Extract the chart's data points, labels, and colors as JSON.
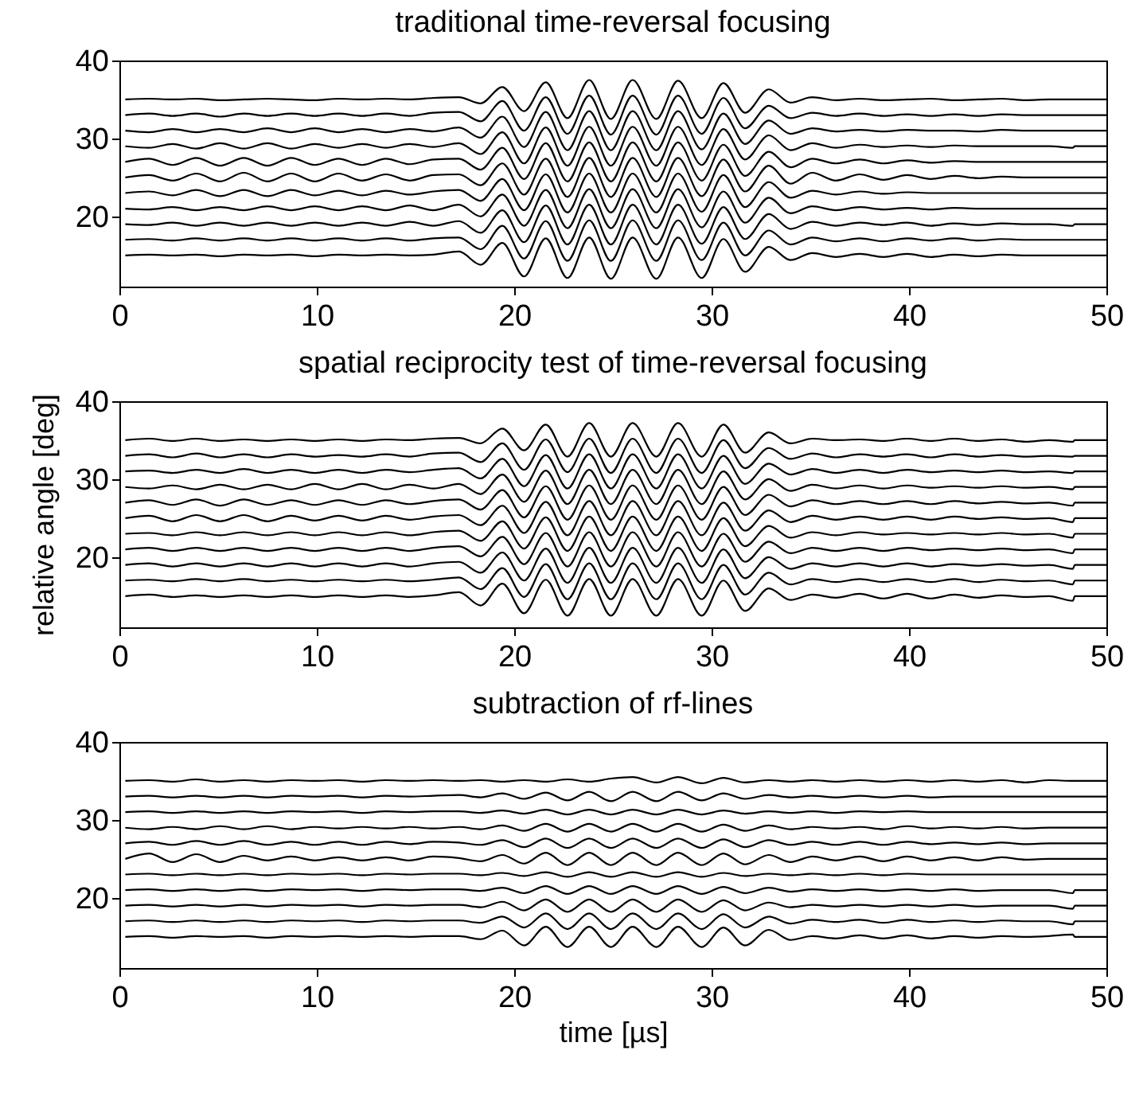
{
  "chart_data": [
    {
      "type": "line",
      "title": "traditional time-reversal focusing",
      "x": [
        0.3,
        1.5,
        2.7,
        3.9,
        5.1,
        6.3,
        7.5,
        8.7,
        9.9,
        11.1,
        12.3,
        13.5,
        14.7,
        15.9,
        17.2,
        18.3,
        19.4,
        20.5,
        21.6,
        22.7,
        23.8,
        24.9,
        26.0,
        27.2,
        28.3,
        29.5,
        30.6,
        31.7,
        32.9,
        34.0,
        35.1,
        36.3,
        37.5,
        38.7,
        39.9,
        41.1,
        42.3,
        43.5,
        44.7,
        45.9,
        47.1,
        48.3,
        48.4,
        50
      ],
      "xlim": [
        0,
        50
      ],
      "ylim": [
        11,
        40
      ],
      "xticks": [
        0,
        10,
        20,
        30,
        40,
        50
      ],
      "yticks": [
        20,
        30,
        40
      ],
      "legend": false,
      "grid": false,
      "series": [
        {
          "color": "#000000",
          "values": [
            35.0,
            35.1,
            35.0,
            35.1,
            34.9,
            35.0,
            35.1,
            35.0,
            34.9,
            35.1,
            35.0,
            35.1,
            35.0,
            35.2,
            35.3,
            34.5,
            36.6,
            33.5,
            37.2,
            32.6,
            37.5,
            32.5,
            37.5,
            32.5,
            37.4,
            32.6,
            37.1,
            33.3,
            36.3,
            34.6,
            35.3,
            34.9,
            35.1,
            34.9,
            35.0,
            35.1,
            34.9,
            35.0,
            35.1,
            34.9,
            35.0,
            35.0,
            35.0,
            35.0
          ]
        },
        {
          "color": "#000000",
          "values": [
            33.0,
            33.2,
            32.9,
            33.2,
            32.8,
            33.2,
            32.9,
            33.2,
            32.9,
            33.2,
            32.9,
            33.2,
            32.9,
            33.3,
            33.4,
            32.2,
            34.8,
            31.0,
            35.3,
            30.6,
            35.5,
            30.5,
            35.5,
            30.5,
            35.5,
            30.6,
            35.2,
            31.3,
            34.2,
            32.6,
            33.3,
            32.9,
            33.2,
            32.9,
            33.1,
            32.9,
            33.1,
            32.9,
            33.1,
            33.0,
            33.0,
            33.0,
            33.0,
            33.0
          ]
        },
        {
          "color": "#000000",
          "values": [
            31.0,
            30.8,
            31.2,
            30.8,
            31.2,
            30.8,
            31.3,
            30.8,
            31.3,
            30.8,
            31.2,
            30.8,
            31.2,
            30.9,
            31.4,
            30.1,
            32.8,
            28.9,
            33.4,
            28.5,
            33.5,
            28.5,
            33.5,
            28.5,
            33.5,
            28.6,
            33.2,
            29.3,
            32.3,
            30.6,
            31.3,
            30.9,
            31.1,
            30.9,
            31.1,
            31.0,
            31.0,
            30.9,
            31.1,
            31.0,
            31.0,
            31.0,
            31.0,
            31.0
          ]
        },
        {
          "color": "#000000",
          "values": [
            29.0,
            28.8,
            29.3,
            28.7,
            29.4,
            28.7,
            29.4,
            28.7,
            29.3,
            28.8,
            29.3,
            28.8,
            29.3,
            28.9,
            29.4,
            28.0,
            30.8,
            26.8,
            31.4,
            26.5,
            31.5,
            26.5,
            31.5,
            26.5,
            31.5,
            26.6,
            31.2,
            27.3,
            30.4,
            28.5,
            29.4,
            28.8,
            29.2,
            28.9,
            29.1,
            28.9,
            29.1,
            29.0,
            29.0,
            29.0,
            29.0,
            28.8,
            29.0,
            29.0
          ]
        },
        {
          "color": "#000000",
          "values": [
            27.0,
            27.4,
            26.6,
            27.5,
            26.5,
            27.5,
            26.5,
            27.5,
            26.6,
            27.4,
            26.6,
            27.4,
            26.7,
            27.3,
            27.4,
            26.0,
            28.8,
            24.8,
            29.4,
            24.5,
            29.5,
            24.5,
            29.5,
            24.5,
            29.5,
            24.6,
            29.2,
            25.2,
            28.3,
            26.3,
            27.4,
            26.8,
            27.3,
            26.8,
            27.2,
            26.9,
            27.1,
            27.0,
            27.0,
            27.0,
            27.0,
            27.0,
            27.0,
            27.0
          ]
        },
        {
          "color": "#000000",
          "values": [
            25.0,
            25.3,
            24.6,
            25.5,
            24.5,
            25.6,
            24.5,
            25.5,
            24.5,
            25.5,
            24.6,
            25.4,
            24.6,
            25.3,
            25.4,
            24.0,
            26.8,
            22.8,
            27.4,
            22.5,
            27.5,
            22.5,
            27.5,
            22.5,
            27.5,
            22.6,
            27.3,
            23.2,
            26.5,
            24.2,
            25.6,
            24.6,
            25.4,
            24.7,
            25.3,
            24.8,
            25.2,
            24.9,
            25.1,
            25.0,
            25.0,
            25.0,
            25.0,
            25.0
          ]
        },
        {
          "color": "#000000",
          "values": [
            23.0,
            23.2,
            22.7,
            23.4,
            22.6,
            23.4,
            22.6,
            23.4,
            22.7,
            23.3,
            22.7,
            23.3,
            22.8,
            23.2,
            23.4,
            22.0,
            24.8,
            20.8,
            25.4,
            20.5,
            25.5,
            20.5,
            25.5,
            20.5,
            25.5,
            20.6,
            25.3,
            21.2,
            24.4,
            22.4,
            23.3,
            22.8,
            23.2,
            22.9,
            23.1,
            23.0,
            23.0,
            23.0,
            23.0,
            23.0,
            23.0,
            23.0,
            23.0,
            23.0
          ]
        },
        {
          "color": "#000000",
          "values": [
            21.0,
            20.9,
            21.2,
            20.8,
            21.2,
            20.8,
            21.3,
            20.8,
            21.3,
            20.8,
            21.3,
            20.8,
            21.4,
            20.8,
            21.5,
            20.0,
            22.8,
            18.8,
            23.4,
            18.5,
            23.5,
            18.5,
            23.5,
            18.5,
            23.5,
            18.6,
            23.2,
            19.2,
            22.4,
            20.4,
            21.3,
            20.8,
            21.2,
            20.9,
            21.1,
            20.9,
            21.1,
            21.0,
            21.0,
            21.0,
            21.0,
            21.0,
            21.0,
            21.0
          ]
        },
        {
          "color": "#000000",
          "values": [
            19.0,
            18.9,
            19.2,
            18.8,
            19.2,
            18.8,
            19.2,
            18.8,
            19.2,
            18.8,
            19.2,
            18.8,
            19.3,
            18.8,
            19.4,
            17.9,
            20.8,
            16.7,
            21.4,
            16.4,
            21.5,
            16.4,
            21.5,
            16.4,
            21.5,
            16.5,
            21.2,
            17.1,
            20.3,
            18.4,
            19.3,
            18.8,
            19.2,
            18.9,
            19.2,
            18.8,
            19.1,
            18.9,
            19.1,
            19.0,
            19.0,
            18.8,
            19.0,
            19.0
          ]
        },
        {
          "color": "#000000",
          "values": [
            17.0,
            17.1,
            16.9,
            17.2,
            16.9,
            17.2,
            16.9,
            17.2,
            16.9,
            17.2,
            16.9,
            17.2,
            16.9,
            17.2,
            17.3,
            15.8,
            18.8,
            14.6,
            19.4,
            14.3,
            19.5,
            14.3,
            19.5,
            14.3,
            19.5,
            14.4,
            19.2,
            15.0,
            18.2,
            16.4,
            17.3,
            16.8,
            17.2,
            16.8,
            17.2,
            16.9,
            17.2,
            16.9,
            17.1,
            17.0,
            17.0,
            17.0,
            17.0,
            17.0
          ]
        },
        {
          "color": "#000000",
          "values": [
            15.0,
            15.1,
            15.0,
            15.1,
            14.9,
            15.1,
            15.0,
            15.1,
            14.9,
            15.1,
            15.0,
            15.1,
            15.0,
            15.1,
            15.5,
            13.8,
            16.6,
            12.3,
            17.2,
            12.1,
            17.3,
            12.0,
            17.3,
            12.0,
            17.3,
            12.1,
            17.1,
            12.9,
            16.1,
            14.4,
            15.3,
            14.8,
            15.2,
            14.8,
            15.2,
            14.8,
            15.1,
            14.9,
            15.1,
            15.0,
            15.0,
            15.0,
            15.0,
            15.0
          ]
        }
      ]
    },
    {
      "type": "line",
      "title": "spatial reciprocity test of time-reversal focusing",
      "ylabel": "relative angle [deg]",
      "x": [
        0.3,
        1.5,
        2.7,
        3.9,
        5.1,
        6.3,
        7.5,
        8.7,
        9.9,
        11.1,
        12.3,
        13.5,
        14.7,
        15.9,
        17.2,
        18.3,
        19.4,
        20.5,
        21.6,
        22.7,
        23.8,
        24.9,
        26.0,
        27.2,
        28.3,
        29.5,
        30.6,
        31.7,
        32.9,
        34.0,
        35.1,
        36.3,
        37.5,
        38.7,
        39.9,
        41.1,
        42.3,
        43.5,
        44.7,
        45.9,
        47.1,
        48.3,
        48.4,
        50
      ],
      "xlim": [
        0,
        50
      ],
      "ylim": [
        11,
        40
      ],
      "xticks": [
        0,
        10,
        20,
        30,
        40,
        50
      ],
      "yticks": [
        20,
        30,
        40
      ],
      "legend": false,
      "grid": false,
      "series": [
        {
          "color": "#000000",
          "values": [
            35.0,
            35.2,
            34.9,
            35.2,
            34.9,
            35.1,
            34.9,
            35.1,
            34.9,
            35.1,
            34.9,
            35.1,
            35.0,
            35.2,
            35.3,
            34.6,
            36.5,
            33.7,
            37.0,
            32.9,
            37.2,
            32.9,
            37.2,
            32.9,
            37.2,
            32.9,
            37.0,
            33.4,
            36.0,
            34.6,
            35.2,
            35.0,
            35.1,
            34.9,
            35.2,
            34.9,
            35.2,
            34.9,
            35.1,
            34.8,
            35.0,
            34.8,
            35.0,
            35.0
          ]
        },
        {
          "color": "#000000",
          "values": [
            33.0,
            33.2,
            32.8,
            33.3,
            32.8,
            33.2,
            32.8,
            33.2,
            32.9,
            33.1,
            32.9,
            33.2,
            32.9,
            33.3,
            33.4,
            32.2,
            34.6,
            31.2,
            35.1,
            30.9,
            35.2,
            30.8,
            35.2,
            30.8,
            35.2,
            30.8,
            35.0,
            31.4,
            34.0,
            32.6,
            33.3,
            32.8,
            33.2,
            32.9,
            33.2,
            32.8,
            33.2,
            32.9,
            33.1,
            32.9,
            33.0,
            32.9,
            33.0,
            33.0
          ]
        },
        {
          "color": "#000000",
          "values": [
            31.0,
            31.1,
            30.8,
            31.2,
            30.8,
            31.3,
            30.8,
            31.2,
            30.8,
            31.2,
            30.8,
            31.2,
            30.9,
            31.2,
            31.4,
            30.1,
            32.6,
            29.1,
            33.1,
            28.8,
            33.2,
            28.8,
            33.2,
            28.8,
            33.2,
            28.8,
            33.0,
            29.4,
            32.0,
            30.6,
            31.3,
            30.8,
            31.2,
            30.8,
            31.2,
            30.9,
            31.1,
            30.9,
            31.1,
            30.9,
            31.0,
            30.8,
            31.0,
            31.0
          ]
        },
        {
          "color": "#000000",
          "values": [
            29.0,
            28.8,
            29.2,
            28.7,
            29.3,
            28.7,
            29.3,
            28.7,
            29.4,
            28.7,
            29.4,
            28.7,
            29.3,
            28.8,
            29.4,
            28.1,
            30.6,
            27.1,
            31.1,
            26.8,
            31.2,
            26.8,
            31.2,
            26.8,
            31.2,
            26.8,
            31.0,
            27.4,
            30.0,
            28.5,
            29.3,
            28.8,
            29.2,
            28.8,
            29.2,
            28.9,
            29.1,
            28.9,
            29.1,
            28.9,
            29.0,
            28.7,
            29.0,
            29.0
          ]
        },
        {
          "color": "#000000",
          "values": [
            27.0,
            27.3,
            26.7,
            27.4,
            26.6,
            27.4,
            26.7,
            27.3,
            26.7,
            27.3,
            26.7,
            27.3,
            26.8,
            27.2,
            27.4,
            26.1,
            28.6,
            25.1,
            29.1,
            24.8,
            29.2,
            24.8,
            29.2,
            24.8,
            29.2,
            24.8,
            29.0,
            25.4,
            28.0,
            26.5,
            27.3,
            26.8,
            27.2,
            26.8,
            27.2,
            26.8,
            27.2,
            26.9,
            27.1,
            26.9,
            27.0,
            26.6,
            27.0,
            27.0
          ]
        },
        {
          "color": "#000000",
          "values": [
            25.0,
            25.3,
            24.6,
            25.4,
            24.6,
            25.4,
            24.6,
            25.3,
            24.7,
            25.3,
            24.7,
            25.3,
            24.8,
            25.2,
            25.4,
            24.1,
            26.6,
            23.1,
            27.1,
            22.8,
            27.2,
            22.8,
            27.2,
            22.8,
            27.2,
            22.8,
            27.0,
            23.4,
            26.0,
            24.5,
            25.3,
            24.8,
            25.2,
            24.8,
            25.2,
            24.8,
            25.2,
            24.9,
            25.1,
            24.9,
            25.0,
            24.5,
            25.0,
            25.0
          ]
        },
        {
          "color": "#000000",
          "values": [
            23.0,
            23.1,
            22.8,
            23.2,
            22.8,
            23.2,
            22.8,
            23.2,
            22.8,
            23.2,
            22.8,
            23.2,
            22.8,
            23.2,
            23.4,
            22.1,
            24.6,
            21.1,
            25.1,
            20.8,
            25.2,
            20.8,
            25.2,
            20.8,
            25.2,
            20.8,
            25.0,
            21.4,
            24.0,
            22.5,
            23.2,
            22.8,
            23.2,
            22.9,
            23.1,
            22.9,
            23.1,
            22.9,
            23.1,
            22.9,
            23.0,
            22.5,
            23.0,
            23.0
          ]
        },
        {
          "color": "#000000",
          "values": [
            21.0,
            21.2,
            20.8,
            21.2,
            20.8,
            21.2,
            20.8,
            21.2,
            20.8,
            21.2,
            20.8,
            21.2,
            20.8,
            21.2,
            21.4,
            20.1,
            22.6,
            19.1,
            23.1,
            18.8,
            23.2,
            18.8,
            23.2,
            18.8,
            23.2,
            18.8,
            23.0,
            19.4,
            22.0,
            20.5,
            21.2,
            20.8,
            21.2,
            20.8,
            21.2,
            20.9,
            21.1,
            20.9,
            21.1,
            20.9,
            21.0,
            20.5,
            21.0,
            21.0
          ]
        },
        {
          "color": "#000000",
          "values": [
            19.0,
            19.2,
            18.8,
            19.2,
            18.8,
            19.2,
            18.8,
            19.2,
            18.8,
            19.2,
            18.8,
            19.2,
            18.8,
            19.2,
            19.4,
            18.0,
            20.6,
            17.0,
            21.1,
            16.7,
            21.2,
            16.7,
            21.2,
            16.7,
            21.2,
            16.7,
            21.0,
            17.3,
            20.0,
            18.5,
            19.2,
            18.8,
            19.2,
            18.8,
            19.2,
            18.8,
            19.1,
            18.9,
            19.1,
            18.9,
            19.0,
            18.5,
            19.0,
            19.0
          ]
        },
        {
          "color": "#000000",
          "values": [
            17.0,
            17.1,
            16.9,
            17.2,
            16.9,
            17.2,
            16.9,
            17.1,
            16.9,
            17.1,
            16.9,
            17.1,
            16.9,
            17.1,
            17.4,
            15.9,
            18.6,
            14.9,
            19.1,
            14.6,
            19.2,
            14.6,
            19.2,
            14.6,
            19.2,
            14.6,
            19.0,
            15.2,
            18.0,
            16.5,
            17.2,
            16.8,
            17.2,
            16.8,
            17.2,
            16.8,
            17.2,
            16.8,
            17.1,
            16.9,
            17.0,
            16.5,
            17.0,
            17.0
          ]
        },
        {
          "color": "#000000",
          "values": [
            15.0,
            15.2,
            14.9,
            15.1,
            14.9,
            15.1,
            14.9,
            15.1,
            14.9,
            15.1,
            14.9,
            15.1,
            14.9,
            15.1,
            15.5,
            13.8,
            16.6,
            12.8,
            17.1,
            12.5,
            17.2,
            12.5,
            17.2,
            12.5,
            17.2,
            12.5,
            17.0,
            13.1,
            16.0,
            14.5,
            15.2,
            14.8,
            15.3,
            14.7,
            15.3,
            14.7,
            15.2,
            14.8,
            15.1,
            14.9,
            15.0,
            14.4,
            15.0,
            15.0
          ]
        }
      ]
    },
    {
      "type": "line",
      "title": "subtraction of rf-lines",
      "xlabel": "time [µs]",
      "x": [
        0.3,
        1.5,
        2.7,
        3.9,
        5.1,
        6.3,
        7.5,
        8.7,
        9.9,
        11.1,
        12.3,
        13.5,
        14.7,
        15.9,
        17.2,
        18.3,
        19.4,
        20.5,
        21.6,
        22.7,
        23.8,
        24.9,
        26.0,
        27.2,
        28.3,
        29.5,
        30.6,
        31.7,
        32.9,
        34.0,
        35.1,
        36.3,
        37.5,
        38.7,
        39.9,
        41.1,
        42.3,
        43.5,
        44.7,
        45.9,
        47.1,
        48.3,
        48.4,
        50
      ],
      "xlim": [
        0,
        50
      ],
      "ylim": [
        11,
        40
      ],
      "xticks": [
        0,
        10,
        20,
        30,
        40,
        50
      ],
      "yticks": [
        20,
        30,
        40
      ],
      "legend": false,
      "grid": false,
      "series": [
        {
          "color": "#000000",
          "values": [
            35.0,
            35.1,
            34.9,
            35.2,
            34.9,
            35.1,
            34.9,
            35.1,
            35.0,
            35.1,
            34.9,
            35.1,
            35.0,
            35.1,
            35.0,
            35.1,
            34.9,
            35.1,
            34.9,
            35.2,
            34.9,
            35.3,
            35.5,
            34.8,
            35.5,
            34.7,
            35.4,
            34.8,
            35.1,
            34.9,
            35.1,
            34.9,
            35.1,
            34.9,
            35.1,
            34.9,
            35.1,
            34.9,
            35.1,
            34.8,
            35.1,
            35.0,
            35.0,
            35.0
          ]
        },
        {
          "color": "#000000",
          "values": [
            33.0,
            33.1,
            32.9,
            33.1,
            32.9,
            33.1,
            32.9,
            33.1,
            33.0,
            33.1,
            32.9,
            33.1,
            33.0,
            33.1,
            33.2,
            32.9,
            33.4,
            32.7,
            33.5,
            32.5,
            33.6,
            32.4,
            33.6,
            32.4,
            33.6,
            32.5,
            33.4,
            32.7,
            33.2,
            32.9,
            33.1,
            32.9,
            33.1,
            32.9,
            33.1,
            32.9,
            33.0,
            33.0,
            33.0,
            33.0,
            33.0,
            33.0,
            33.0,
            33.0
          ]
        },
        {
          "color": "#000000",
          "values": [
            31.0,
            31.1,
            30.9,
            31.1,
            30.9,
            31.1,
            30.9,
            31.1,
            31.0,
            31.1,
            30.9,
            31.1,
            31.0,
            31.1,
            31.1,
            30.9,
            31.2,
            30.8,
            31.3,
            30.7,
            31.3,
            30.7,
            31.3,
            30.7,
            31.3,
            30.7,
            31.2,
            30.8,
            31.1,
            30.9,
            31.1,
            30.9,
            31.1,
            31.0,
            31.1,
            31.0,
            31.0,
            31.0,
            31.0,
            31.0,
            31.0,
            31.0,
            31.0,
            31.0
          ]
        },
        {
          "color": "#000000",
          "values": [
            29.0,
            28.8,
            29.1,
            28.8,
            29.2,
            28.8,
            29.2,
            28.8,
            29.1,
            28.9,
            29.1,
            28.9,
            29.1,
            28.9,
            29.1,
            28.8,
            29.3,
            28.6,
            29.5,
            28.5,
            29.5,
            28.5,
            29.5,
            28.5,
            29.5,
            28.5,
            29.4,
            28.6,
            29.3,
            28.8,
            29.1,
            28.9,
            29.1,
            28.8,
            29.2,
            28.9,
            29.1,
            28.9,
            29.1,
            28.9,
            29.0,
            29.0,
            29.0,
            29.0
          ]
        },
        {
          "color": "#000000",
          "values": [
            27.0,
            27.2,
            26.8,
            27.3,
            26.8,
            27.3,
            26.8,
            27.2,
            26.8,
            27.2,
            26.8,
            27.2,
            26.9,
            27.2,
            27.1,
            26.8,
            27.4,
            26.5,
            27.6,
            26.4,
            27.6,
            26.4,
            27.6,
            26.4,
            27.6,
            26.4,
            27.5,
            26.5,
            27.4,
            26.8,
            27.2,
            26.8,
            27.2,
            26.8,
            27.2,
            26.9,
            27.1,
            26.9,
            27.1,
            26.9,
            27.0,
            27.0,
            27.0,
            27.0
          ]
        },
        {
          "color": "#000000",
          "values": [
            25.0,
            25.7,
            24.6,
            25.6,
            24.6,
            25.4,
            24.8,
            25.3,
            24.8,
            25.2,
            24.8,
            25.2,
            24.8,
            25.3,
            25.1,
            24.7,
            25.5,
            24.4,
            25.8,
            24.2,
            25.8,
            24.2,
            25.8,
            24.2,
            25.8,
            24.2,
            25.7,
            24.3,
            25.5,
            24.6,
            25.3,
            24.8,
            25.3,
            24.7,
            25.3,
            24.8,
            25.2,
            24.8,
            25.2,
            24.9,
            25.0,
            25.0,
            25.0,
            25.0
          ]
        },
        {
          "color": "#000000",
          "values": [
            23.0,
            23.1,
            22.9,
            23.1,
            22.9,
            23.1,
            22.9,
            23.1,
            23.0,
            23.1,
            22.9,
            23.1,
            23.0,
            23.1,
            23.1,
            22.9,
            23.2,
            22.8,
            23.3,
            22.7,
            23.3,
            22.7,
            23.3,
            22.7,
            23.3,
            22.7,
            23.2,
            22.8,
            23.1,
            22.9,
            23.1,
            22.9,
            23.1,
            22.9,
            23.1,
            23.0,
            23.0,
            23.0,
            23.0,
            23.0,
            23.0,
            23.0,
            23.0,
            23.0
          ]
        },
        {
          "color": "#000000",
          "values": [
            21.0,
            21.1,
            20.9,
            21.1,
            20.9,
            21.1,
            20.9,
            21.1,
            21.0,
            21.1,
            20.9,
            21.1,
            21.0,
            21.1,
            21.1,
            20.9,
            21.3,
            20.6,
            21.5,
            20.5,
            21.5,
            20.5,
            21.5,
            20.5,
            21.5,
            20.5,
            21.4,
            20.6,
            21.3,
            20.8,
            21.1,
            20.9,
            21.1,
            20.9,
            21.1,
            20.9,
            21.1,
            20.9,
            21.0,
            21.0,
            21.0,
            20.6,
            21.0,
            21.0
          ]
        },
        {
          "color": "#000000",
          "values": [
            19.0,
            19.1,
            18.9,
            19.1,
            18.9,
            19.1,
            18.9,
            19.1,
            19.0,
            19.1,
            18.9,
            19.1,
            19.0,
            19.1,
            19.1,
            18.8,
            19.5,
            18.4,
            19.8,
            18.2,
            19.8,
            18.2,
            19.8,
            18.2,
            19.8,
            18.2,
            19.7,
            18.4,
            19.4,
            18.8,
            19.1,
            18.9,
            19.1,
            18.9,
            19.1,
            18.9,
            19.1,
            18.9,
            19.0,
            19.0,
            19.0,
            18.6,
            19.0,
            19.0
          ]
        },
        {
          "color": "#000000",
          "values": [
            17.0,
            17.1,
            16.9,
            17.1,
            16.9,
            17.1,
            16.9,
            17.1,
            17.0,
            17.1,
            16.9,
            17.1,
            17.0,
            17.1,
            17.1,
            16.8,
            17.6,
            16.2,
            18.0,
            16.0,
            18.0,
            16.0,
            18.0,
            16.0,
            18.0,
            16.0,
            17.9,
            16.2,
            17.6,
            16.7,
            17.2,
            16.9,
            17.2,
            16.8,
            17.2,
            16.9,
            17.1,
            16.9,
            17.1,
            17.0,
            17.0,
            16.6,
            17.0,
            17.0
          ]
        },
        {
          "color": "#000000",
          "values": [
            15.0,
            15.1,
            14.9,
            15.1,
            15.0,
            15.1,
            14.9,
            15.1,
            15.0,
            15.1,
            15.0,
            15.1,
            15.0,
            15.1,
            15.1,
            14.7,
            15.8,
            13.9,
            16.3,
            13.7,
            16.3,
            13.7,
            16.3,
            13.7,
            16.3,
            13.7,
            16.2,
            13.9,
            15.9,
            14.6,
            15.1,
            14.8,
            15.2,
            14.8,
            15.2,
            14.8,
            15.1,
            14.9,
            15.1,
            15.0,
            15.1,
            15.3,
            15.0,
            15.0
          ]
        }
      ]
    }
  ]
}
